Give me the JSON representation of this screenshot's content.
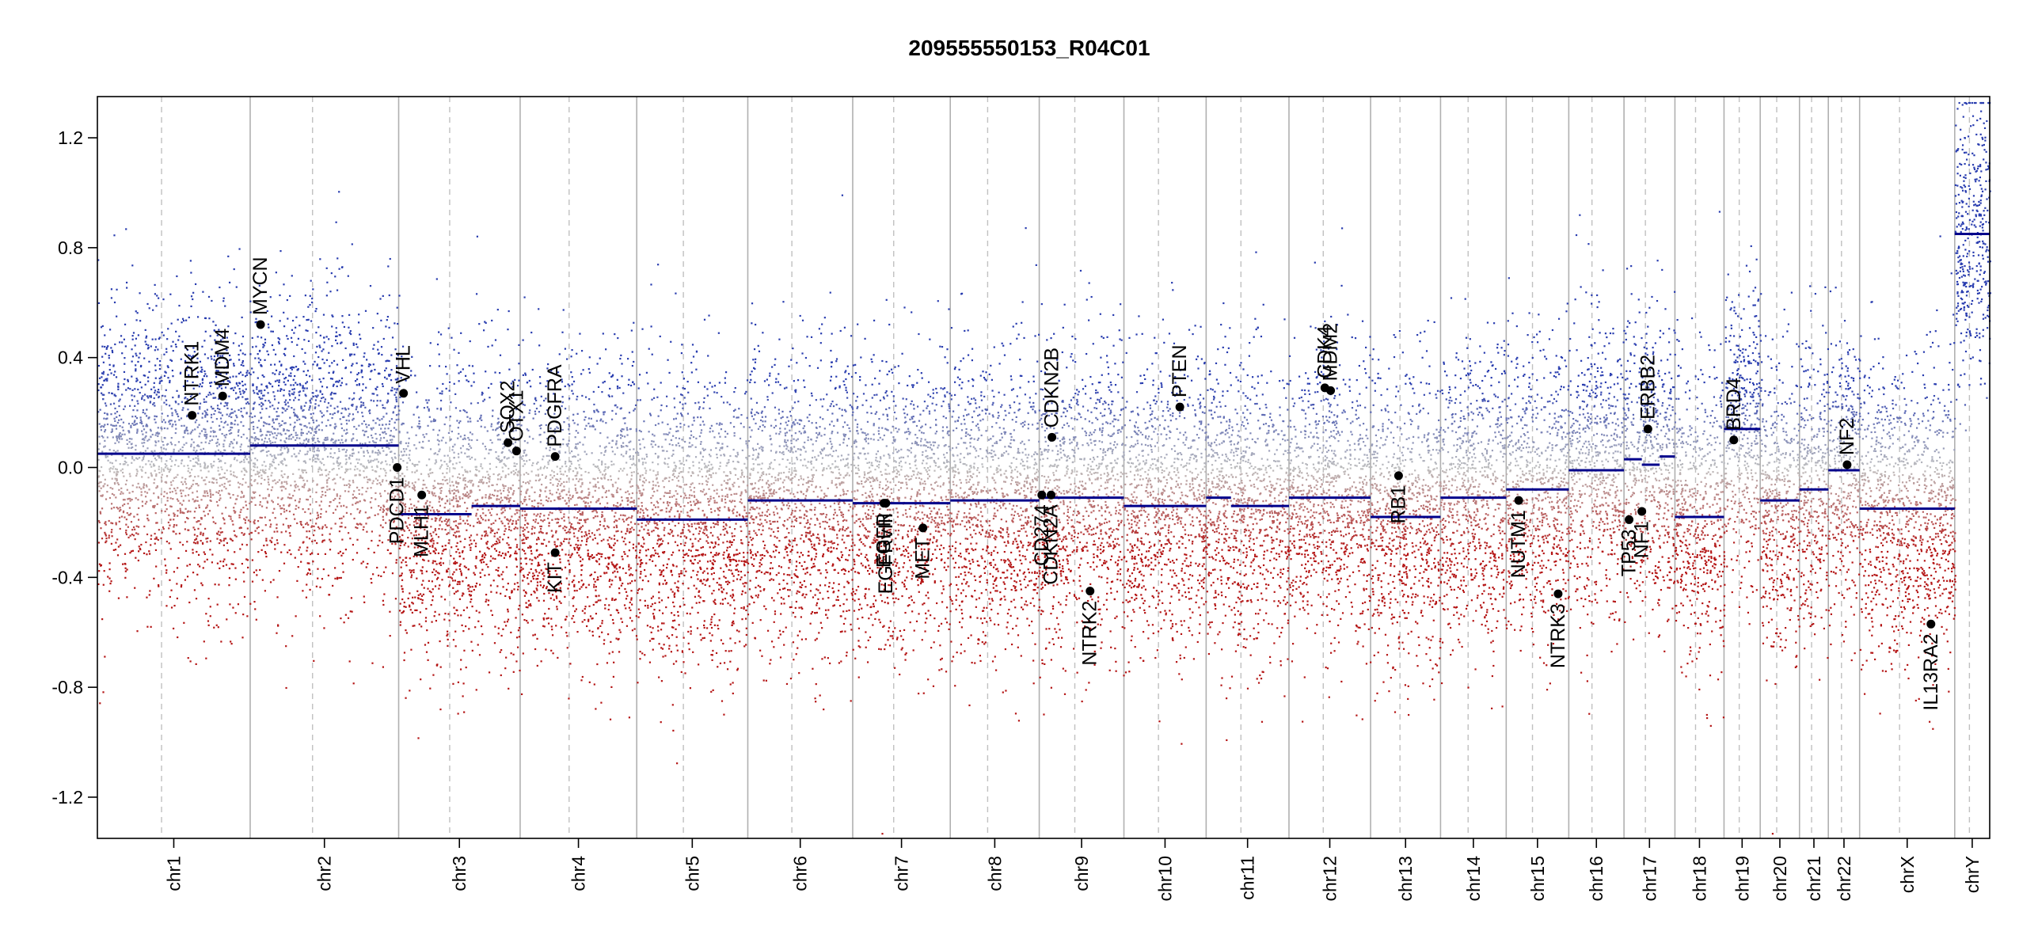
{
  "chart_data": {
    "type": "scatter",
    "title": "209555550153_R04C01",
    "xlabel": "",
    "ylabel": "",
    "ylim": [
      -1.35,
      1.35
    ],
    "yticks": [
      1.2,
      0.8,
      0.4,
      0.0,
      -0.4,
      -0.8,
      -1.2
    ],
    "ytick_labels": [
      "1.2",
      "0.8",
      "0.4",
      "0.0",
      "-0.4",
      "-0.8",
      "-1.2"
    ],
    "chromosomes": [
      {
        "name": "chr1",
        "size": 249,
        "segments": [
          {
            "from": 0,
            "to": 1,
            "value": 0.05
          }
        ]
      },
      {
        "name": "chr2",
        "size": 242,
        "segments": [
          {
            "from": 0,
            "to": 1,
            "value": 0.08
          }
        ]
      },
      {
        "name": "chr3",
        "size": 198,
        "segments": [
          {
            "from": 0,
            "to": 0.6,
            "value": -0.17
          },
          {
            "from": 0.6,
            "to": 1,
            "value": -0.14
          }
        ]
      },
      {
        "name": "chr4",
        "size": 190,
        "segments": [
          {
            "from": 0,
            "to": 1,
            "value": -0.15
          }
        ]
      },
      {
        "name": "chr5",
        "size": 181,
        "segments": [
          {
            "from": 0,
            "to": 1,
            "value": -0.19
          }
        ]
      },
      {
        "name": "chr6",
        "size": 171,
        "segments": [
          {
            "from": 0,
            "to": 1,
            "value": -0.12
          }
        ]
      },
      {
        "name": "chr7",
        "size": 159,
        "segments": [
          {
            "from": 0,
            "to": 1,
            "value": -0.13
          }
        ]
      },
      {
        "name": "chr8",
        "size": 145,
        "segments": [
          {
            "from": 0,
            "to": 1,
            "value": -0.12
          }
        ]
      },
      {
        "name": "chr9",
        "size": 138,
        "segments": [
          {
            "from": 0,
            "to": 1,
            "value": -0.11
          }
        ]
      },
      {
        "name": "chr10",
        "size": 134,
        "segments": [
          {
            "from": 0,
            "to": 1,
            "value": -0.14
          }
        ]
      },
      {
        "name": "chr11",
        "size": 135,
        "segments": [
          {
            "from": 0,
            "to": 0.3,
            "value": -0.11
          },
          {
            "from": 0.3,
            "to": 1,
            "value": -0.14
          }
        ]
      },
      {
        "name": "chr12",
        "size": 133,
        "segments": [
          {
            "from": 0,
            "to": 1,
            "value": -0.11
          }
        ]
      },
      {
        "name": "chr13",
        "size": 114,
        "segments": [
          {
            "from": 0,
            "to": 1,
            "value": -0.18
          }
        ]
      },
      {
        "name": "chr14",
        "size": 107,
        "segments": [
          {
            "from": 0,
            "to": 1,
            "value": -0.11
          }
        ]
      },
      {
        "name": "chr15",
        "size": 102,
        "segments": [
          {
            "from": 0,
            "to": 1,
            "value": -0.08
          }
        ]
      },
      {
        "name": "chr16",
        "size": 90,
        "segments": [
          {
            "from": 0,
            "to": 1,
            "value": -0.01
          }
        ]
      },
      {
        "name": "chr17",
        "size": 83,
        "segments": [
          {
            "from": 0,
            "to": 0.35,
            "value": 0.03
          },
          {
            "from": 0.35,
            "to": 0.7,
            "value": 0.01
          },
          {
            "from": 0.7,
            "to": 1,
            "value": 0.04
          }
        ]
      },
      {
        "name": "chr18",
        "size": 80,
        "segments": [
          {
            "from": 0,
            "to": 1,
            "value": -0.18
          }
        ]
      },
      {
        "name": "chr19",
        "size": 59,
        "segments": [
          {
            "from": 0,
            "to": 1,
            "value": 0.14
          }
        ]
      },
      {
        "name": "chr20",
        "size": 64,
        "segments": [
          {
            "from": 0,
            "to": 1,
            "value": -0.12
          }
        ]
      },
      {
        "name": "chr21",
        "size": 47,
        "segments": [
          {
            "from": 0,
            "to": 1,
            "value": -0.08
          }
        ]
      },
      {
        "name": "chr22",
        "size": 51,
        "segments": [
          {
            "from": 0,
            "to": 1,
            "value": -0.01
          }
        ]
      },
      {
        "name": "chrX",
        "size": 155,
        "segments": [
          {
            "from": 0,
            "to": 1,
            "value": -0.15
          }
        ]
      },
      {
        "name": "chrY",
        "size": 57,
        "segments": [
          {
            "from": 0,
            "to": 1,
            "value": 0.85
          }
        ]
      }
    ],
    "genes": [
      {
        "name": "NTRK1",
        "chrom": "chr1",
        "pos": 0.62,
        "value": 0.19,
        "label_side": "above"
      },
      {
        "name": "MDM4",
        "chrom": "chr1",
        "pos": 0.82,
        "value": 0.26,
        "label_side": "above"
      },
      {
        "name": "MYCN",
        "chrom": "chr2",
        "pos": 0.07,
        "value": 0.52,
        "label_side": "above"
      },
      {
        "name": "VHL",
        "chrom": "chr3",
        "pos": 0.04,
        "value": 0.27,
        "label_side": "above"
      },
      {
        "name": "PDCD1",
        "chrom": "chr2",
        "pos": 0.99,
        "value": 0.0,
        "label_side": "below"
      },
      {
        "name": "MLH1",
        "chrom": "chr3",
        "pos": 0.19,
        "value": -0.1,
        "label_side": "below"
      },
      {
        "name": "SOX2",
        "chrom": "chr3",
        "pos": 0.9,
        "value": 0.09,
        "label_side": "above"
      },
      {
        "name": "OTX1",
        "chrom": "chr3",
        "pos": 0.97,
        "value": 0.06,
        "label_side": "above"
      },
      {
        "name": "PDGFRA",
        "chrom": "chr4",
        "pos": 0.3,
        "value": 0.04,
        "label_side": "above"
      },
      {
        "name": "KIT",
        "chrom": "chr4",
        "pos": 0.3,
        "value": -0.31,
        "label_side": "below"
      },
      {
        "name": "EGFR",
        "chrom": "chr7",
        "pos": 0.32,
        "value": -0.13,
        "label_side": "below"
      },
      {
        "name": "EGFRvIII",
        "chrom": "chr7",
        "pos": 0.34,
        "value": -0.13,
        "label_side": "below"
      },
      {
        "name": "MET",
        "chrom": "chr7",
        "pos": 0.72,
        "value": -0.22,
        "label_side": "below"
      },
      {
        "name": "CDKN2B",
        "chrom": "chr9",
        "pos": 0.15,
        "value": 0.11,
        "label_side": "above"
      },
      {
        "name": "CD274",
        "chrom": "chr9",
        "pos": 0.03,
        "value": -0.1,
        "label_side": "below"
      },
      {
        "name": "CDKN2A",
        "chrom": "chr9",
        "pos": 0.14,
        "value": -0.1,
        "label_side": "below"
      },
      {
        "name": "NTRK2",
        "chrom": "chr9",
        "pos": 0.6,
        "value": -0.45,
        "label_side": "below"
      },
      {
        "name": "PTEN",
        "chrom": "chr10",
        "pos": 0.68,
        "value": 0.22,
        "label_side": "above"
      },
      {
        "name": "CDK4",
        "chrom": "chr12",
        "pos": 0.44,
        "value": 0.29,
        "label_side": "above"
      },
      {
        "name": "MDM2",
        "chrom": "chr12",
        "pos": 0.51,
        "value": 0.28,
        "label_side": "above"
      },
      {
        "name": "RB1",
        "chrom": "chr13",
        "pos": 0.4,
        "value": -0.03,
        "label_side": "below"
      },
      {
        "name": "NUTM1",
        "chrom": "chr15",
        "pos": 0.2,
        "value": -0.12,
        "label_side": "below"
      },
      {
        "name": "NTRK3",
        "chrom": "chr15",
        "pos": 0.83,
        "value": -0.46,
        "label_side": "below"
      },
      {
        "name": "TP53",
        "chrom": "chr17",
        "pos": 0.1,
        "value": -0.19,
        "label_side": "below"
      },
      {
        "name": "NF1",
        "chrom": "chr17",
        "pos": 0.35,
        "value": -0.16,
        "label_side": "below"
      },
      {
        "name": "ERBB2",
        "chrom": "chr17",
        "pos": 0.47,
        "value": 0.14,
        "label_side": "above"
      },
      {
        "name": "BRD4",
        "chrom": "chr19",
        "pos": 0.27,
        "value": 0.1,
        "label_side": "above"
      },
      {
        "name": "NF2",
        "chrom": "chr22",
        "pos": 0.6,
        "value": 0.01,
        "label_side": "above"
      },
      {
        "name": "IL13RA2",
        "chrom": "chrX",
        "pos": 0.75,
        "value": -0.57,
        "label_side": "below"
      }
    ],
    "colors": {
      "gain": "#2b3fb0",
      "loss": "#b22222",
      "neutral": "#b8b8b8",
      "segment": "#00008b",
      "gene_dot": "#000000",
      "chrom_line": "#b0b0b0",
      "arm_line": "#c0c0c0"
    }
  }
}
